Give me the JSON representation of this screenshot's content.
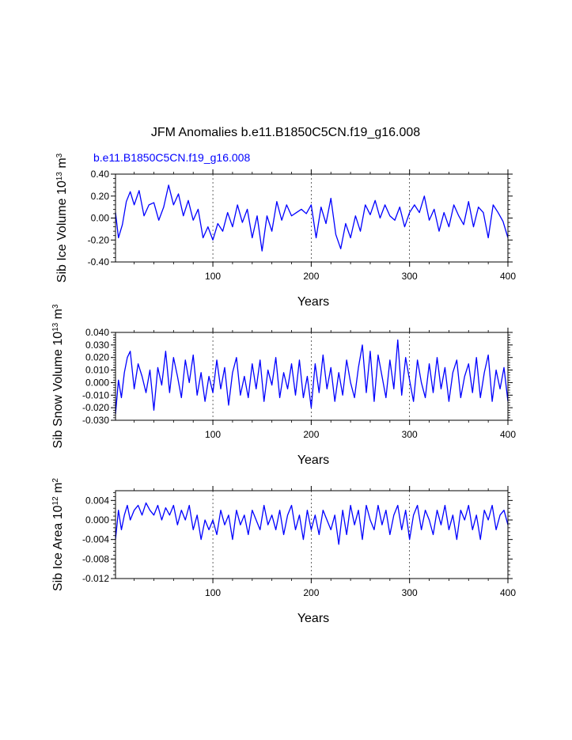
{
  "chart_data": [
    {
      "type": "line",
      "title": "JFM Anomalies b.e11.B1850C5CN.f19_g16.008",
      "subtitle": "b.e11.B1850C5CN.f19_g16.008",
      "ylabel": {
        "text": "Sib Ice Volume 10",
        "exp": "13",
        "unit": " m",
        "unit_exp": "3"
      },
      "xlabel": "Years",
      "xlim": [
        1,
        400
      ],
      "ylim": [
        -0.4,
        0.4
      ],
      "xticks": [
        100,
        200,
        300,
        400
      ],
      "yticks": [
        -0.4,
        -0.2,
        0.0,
        0.2,
        0.4
      ],
      "ytick_labels": [
        "-0.40",
        "-0.20",
        "0.00",
        "0.20",
        "0.40"
      ],
      "vgrid": [
        100,
        200,
        300
      ],
      "series_color": "#0000ff",
      "series": [
        {
          "name": "Sib Ice Volume",
          "x": [
            1,
            4,
            8,
            12,
            16,
            20,
            25,
            30,
            35,
            40,
            45,
            50,
            55,
            60,
            65,
            70,
            75,
            80,
            85,
            90,
            95,
            100,
            105,
            110,
            115,
            120,
            125,
            130,
            135,
            140,
            145,
            150,
            155,
            160,
            165,
            170,
            175,
            180,
            185,
            190,
            195,
            200,
            205,
            210,
            215,
            220,
            225,
            230,
            235,
            240,
            245,
            250,
            255,
            260,
            265,
            270,
            275,
            280,
            285,
            290,
            295,
            300,
            305,
            310,
            315,
            320,
            325,
            330,
            335,
            340,
            345,
            350,
            355,
            360,
            365,
            370,
            375,
            380,
            385,
            390,
            395,
            400
          ],
          "values": [
            0.05,
            -0.18,
            -0.06,
            0.15,
            0.24,
            0.12,
            0.25,
            0.02,
            0.12,
            0.14,
            -0.02,
            0.1,
            0.3,
            0.12,
            0.22,
            0.02,
            0.16,
            -0.02,
            0.08,
            -0.18,
            -0.08,
            -0.2,
            -0.05,
            -0.12,
            0.05,
            -0.08,
            0.12,
            -0.04,
            0.08,
            -0.18,
            0.02,
            -0.3,
            0.02,
            -0.12,
            0.15,
            -0.02,
            0.12,
            0.02,
            0.05,
            0.08,
            0.04,
            0.12,
            -0.18,
            0.1,
            -0.05,
            0.18,
            -0.15,
            -0.28,
            -0.05,
            -0.18,
            0.02,
            -0.12,
            0.12,
            0.03,
            0.16,
            0.0,
            0.12,
            0.02,
            -0.02,
            0.1,
            -0.08,
            0.05,
            0.12,
            0.05,
            0.2,
            -0.02,
            0.08,
            -0.12,
            0.05,
            -0.08,
            0.12,
            0.02,
            -0.06,
            0.15,
            -0.08,
            0.1,
            0.05,
            -0.18,
            0.12,
            0.05,
            -0.03,
            -0.18
          ]
        }
      ]
    },
    {
      "type": "line",
      "title": "",
      "ylabel": {
        "text": "Sib Snow Volume 10",
        "exp": "13",
        "unit": " m",
        "unit_exp": "3"
      },
      "xlabel": "Years",
      "xlim": [
        1,
        400
      ],
      "ylim": [
        -0.03,
        0.04
      ],
      "xticks": [
        100,
        200,
        300,
        400
      ],
      "yticks": [
        -0.03,
        -0.02,
        -0.01,
        0.0,
        0.01,
        0.02,
        0.03,
        0.04
      ],
      "ytick_labels": [
        "-0.030",
        "-0.020",
        "-0.010",
        "0.000",
        "0.010",
        "0.020",
        "0.030",
        "0.040"
      ],
      "vgrid": [
        100,
        200,
        300
      ],
      "series_color": "#0000ff",
      "series": [
        {
          "name": "Sib Snow Volume",
          "x": [
            1,
            4,
            7,
            10,
            13,
            16,
            20,
            24,
            28,
            32,
            36,
            40,
            44,
            48,
            52,
            56,
            60,
            64,
            68,
            72,
            76,
            80,
            84,
            88,
            92,
            96,
            100,
            104,
            108,
            112,
            116,
            120,
            124,
            128,
            132,
            136,
            140,
            144,
            148,
            152,
            156,
            160,
            164,
            168,
            172,
            176,
            180,
            184,
            188,
            192,
            196,
            200,
            204,
            208,
            212,
            216,
            220,
            224,
            228,
            232,
            236,
            240,
            244,
            248,
            252,
            256,
            260,
            264,
            268,
            272,
            276,
            280,
            284,
            288,
            292,
            296,
            300,
            304,
            308,
            312,
            316,
            320,
            324,
            328,
            332,
            336,
            340,
            344,
            348,
            352,
            356,
            360,
            364,
            368,
            372,
            376,
            380,
            384,
            388,
            392,
            396,
            400
          ],
          "values": [
            -0.025,
            0.002,
            -0.012,
            0.008,
            0.02,
            0.025,
            -0.005,
            0.015,
            0.005,
            -0.008,
            0.01,
            -0.022,
            0.012,
            -0.002,
            0.025,
            -0.008,
            0.02,
            0.005,
            -0.012,
            0.018,
            0.0,
            0.022,
            -0.01,
            0.008,
            -0.015,
            0.005,
            -0.008,
            0.018,
            -0.005,
            0.012,
            -0.018,
            0.008,
            0.02,
            -0.01,
            0.005,
            -0.012,
            0.015,
            -0.005,
            0.018,
            -0.015,
            0.01,
            -0.002,
            0.02,
            -0.012,
            0.008,
            -0.005,
            0.015,
            -0.01,
            0.018,
            -0.012,
            0.005,
            -0.02,
            0.015,
            -0.008,
            0.022,
            -0.005,
            0.012,
            -0.015,
            0.008,
            -0.01,
            0.018,
            0.0,
            -0.012,
            0.012,
            0.03,
            -0.008,
            0.025,
            -0.015,
            0.022,
            0.005,
            -0.012,
            0.018,
            -0.005,
            0.034,
            -0.01,
            0.02,
            0.002,
            -0.015,
            0.018,
            0.0,
            -0.012,
            0.015,
            -0.008,
            0.02,
            -0.005,
            0.012,
            -0.015,
            0.008,
            0.018,
            -0.012,
            0.005,
            0.015,
            -0.008,
            0.02,
            -0.012,
            0.008,
            0.022,
            -0.015,
            0.01,
            -0.005,
            0.012,
            -0.015
          ]
        }
      ]
    },
    {
      "type": "line",
      "title": "",
      "ylabel": {
        "text": "Sib Ice Area 10",
        "exp": "12",
        "unit": " m",
        "unit_exp": "2"
      },
      "xlabel": "Years",
      "xlim": [
        1,
        400
      ],
      "ylim": [
        -0.012,
        0.006
      ],
      "xticks": [
        100,
        200,
        300,
        400
      ],
      "yticks": [
        -0.012,
        -0.008,
        -0.004,
        0.0,
        0.004
      ],
      "ytick_labels": [
        "-0.012",
        "-0.008",
        "-0.004",
        "0.000",
        "0.004"
      ],
      "vgrid": [
        100,
        200,
        300
      ],
      "series_color": "#0000ff",
      "series": [
        {
          "name": "Sib Ice Area",
          "x": [
            1,
            4,
            7,
            10,
            13,
            16,
            20,
            24,
            28,
            32,
            36,
            40,
            44,
            48,
            52,
            56,
            60,
            64,
            68,
            72,
            76,
            80,
            84,
            88,
            92,
            96,
            100,
            104,
            108,
            112,
            116,
            120,
            124,
            128,
            132,
            136,
            140,
            144,
            148,
            152,
            156,
            160,
            164,
            168,
            172,
            176,
            180,
            184,
            188,
            192,
            196,
            200,
            204,
            208,
            212,
            216,
            220,
            224,
            228,
            232,
            236,
            240,
            244,
            248,
            252,
            256,
            260,
            264,
            268,
            272,
            276,
            280,
            284,
            288,
            292,
            296,
            300,
            304,
            308,
            312,
            316,
            320,
            324,
            328,
            332,
            336,
            340,
            344,
            348,
            352,
            356,
            360,
            364,
            368,
            372,
            376,
            380,
            384,
            388,
            392,
            396,
            400
          ],
          "values": [
            -0.004,
            0.002,
            -0.002,
            0.001,
            0.003,
            0.0,
            0.002,
            0.003,
            0.001,
            0.0035,
            0.002,
            0.001,
            0.003,
            0.0,
            0.0025,
            0.001,
            0.003,
            -0.001,
            0.002,
            0.0,
            0.003,
            -0.002,
            0.001,
            -0.004,
            0.0,
            -0.002,
            0.0,
            -0.003,
            0.002,
            -0.001,
            0.001,
            -0.004,
            0.002,
            -0.001,
            0.001,
            -0.003,
            0.002,
            0.0,
            -0.002,
            0.003,
            -0.001,
            0.001,
            -0.002,
            0.002,
            -0.003,
            0.001,
            0.003,
            -0.002,
            0.001,
            -0.004,
            0.002,
            -0.002,
            0.001,
            -0.003,
            0.002,
            0.0,
            -0.002,
            0.001,
            -0.005,
            0.002,
            -0.003,
            0.003,
            -0.001,
            0.002,
            -0.004,
            0.003,
            0.0,
            -0.002,
            0.003,
            -0.001,
            0.002,
            -0.003,
            0.001,
            0.003,
            -0.002,
            0.002,
            -0.004,
            0.001,
            0.003,
            -0.002,
            0.002,
            0.0,
            -0.003,
            0.002,
            -0.001,
            0.003,
            -0.002,
            0.001,
            -0.004,
            0.002,
            0.0,
            0.003,
            -0.002,
            0.001,
            -0.004,
            0.002,
            0.0,
            0.003,
            -0.002,
            0.001,
            0.002,
            -0.001
          ]
        }
      ]
    }
  ]
}
